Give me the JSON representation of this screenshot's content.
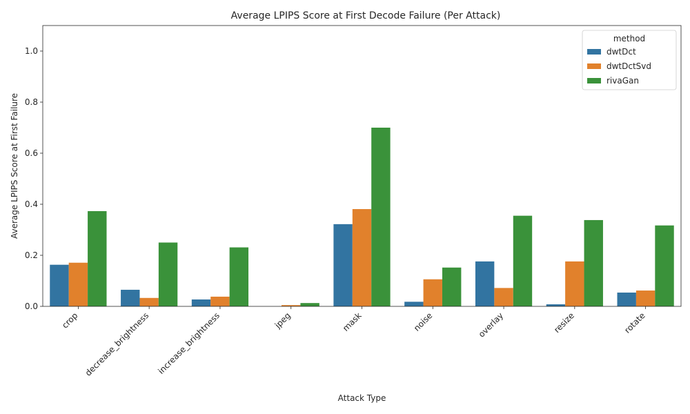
{
  "chart_data": {
    "type": "bar",
    "title": "Average LPIPS Score at First Decode Failure (Per Attack)",
    "xlabel": "Attack Type",
    "ylabel": "Average LPIPS Score at First Failure",
    "ylim": [
      0,
      1.1
    ],
    "yticks": [
      0.0,
      0.2,
      0.4,
      0.6,
      0.8,
      1.0
    ],
    "ytick_labels": [
      "0.0",
      "0.2",
      "0.4",
      "0.6",
      "0.8",
      "1.0"
    ],
    "categories": [
      "crop",
      "decrease_brightness",
      "increase_brightness",
      "jpeg",
      "mask",
      "noise",
      "overlay",
      "resize",
      "rotate"
    ],
    "legend": {
      "title": "method",
      "position": "top-right"
    },
    "grid": false,
    "series": [
      {
        "name": "dwtDct",
        "color": "#3274a1",
        "values": [
          0.163,
          0.065,
          0.027,
          0.0,
          0.322,
          0.018,
          0.176,
          0.008,
          0.054
        ]
      },
      {
        "name": "dwtDctSvd",
        "color": "#e1812c",
        "values": [
          0.171,
          0.033,
          0.038,
          0.005,
          0.381,
          0.106,
          0.072,
          0.176,
          0.062
        ]
      },
      {
        "name": "rivaGan",
        "color": "#3a923a",
        "values": [
          0.373,
          0.25,
          0.231,
          0.013,
          0.7,
          0.152,
          0.355,
          0.338,
          0.317
        ]
      }
    ]
  }
}
